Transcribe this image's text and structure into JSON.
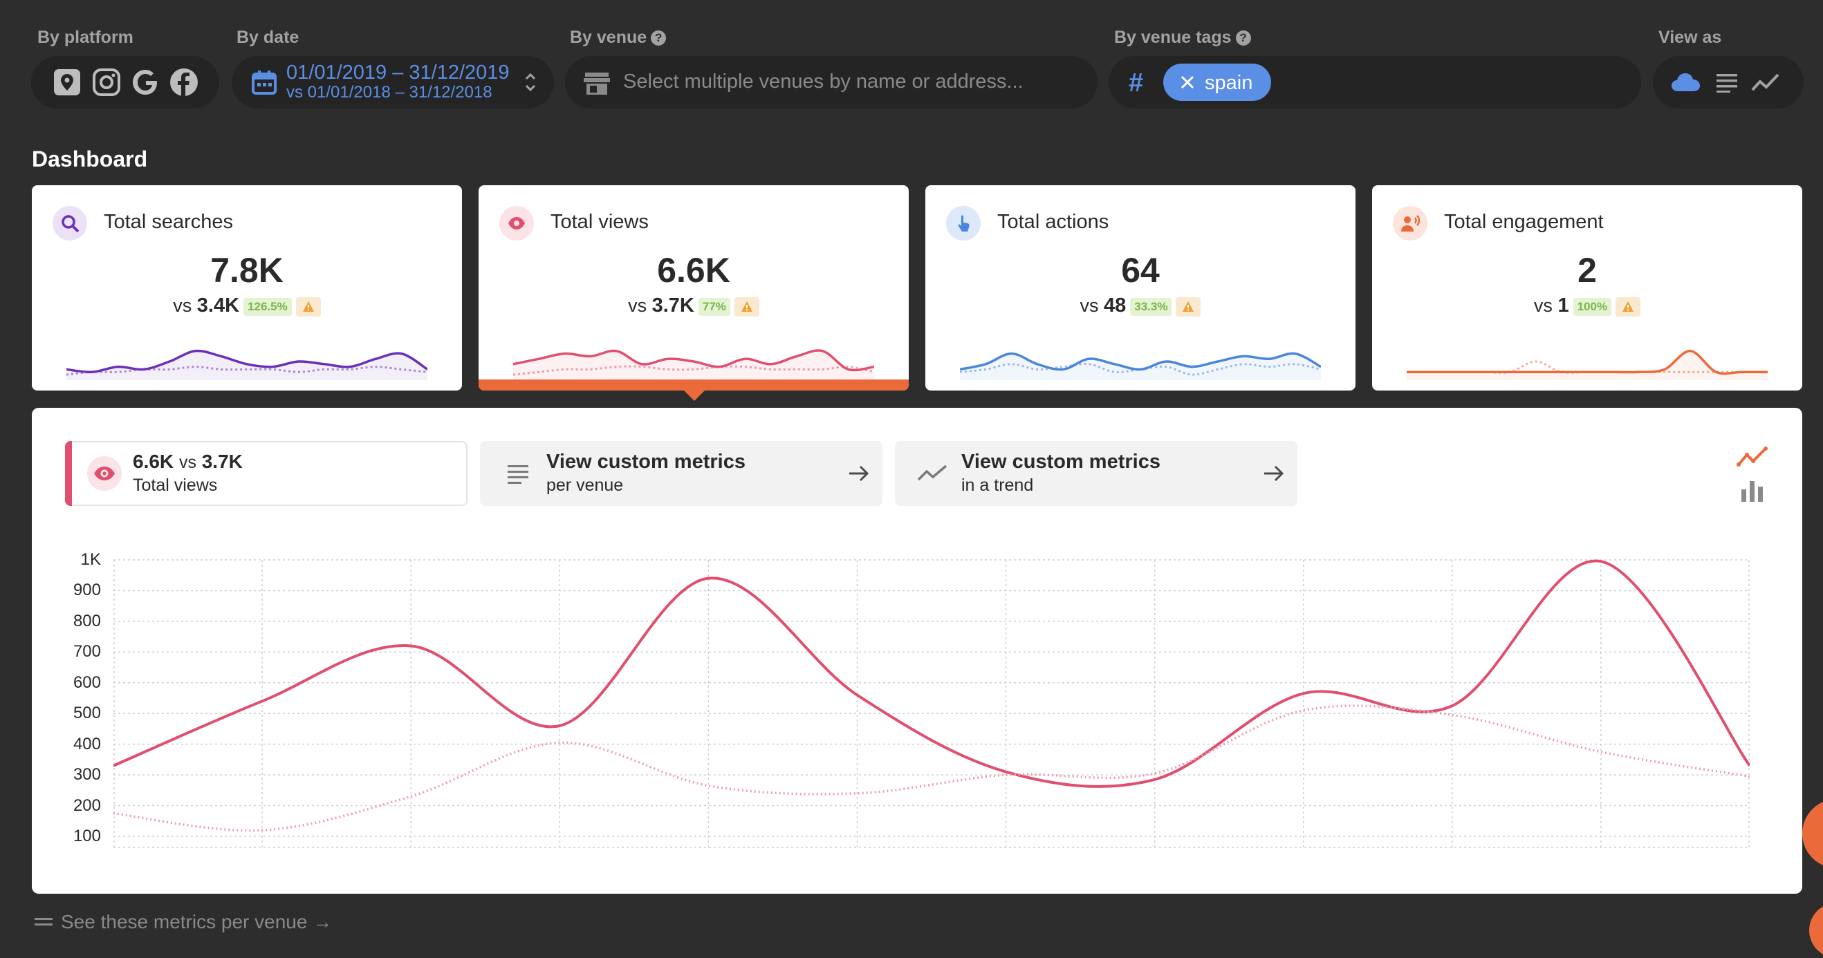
{
  "filters": {
    "platform": {
      "label": "By platform",
      "icons": [
        "google-maps-pin-icon",
        "instagram-icon",
        "google-icon",
        "facebook-icon"
      ]
    },
    "date": {
      "label": "By date",
      "range": "01/01/2019 – 31/12/2019",
      "compare": "vs 01/01/2018 – 31/12/2018"
    },
    "venue": {
      "label": "By venue",
      "placeholder": "Select multiple venues by name or address..."
    },
    "tags": {
      "label": "By venue tags",
      "chips": [
        "spain"
      ]
    },
    "view_as": {
      "label": "View as",
      "options": [
        "cloud-icon",
        "list-icon",
        "trend-icon"
      ]
    }
  },
  "dashboard": {
    "title": "Dashboard",
    "cards": [
      {
        "title": "Total searches",
        "value": "7.8K",
        "vs_label": "vs",
        "vs_value": "3.4K",
        "change": "126.5%",
        "color": "#6b2fb8",
        "icon_bg": "#ece2f7"
      },
      {
        "title": "Total views",
        "value": "6.6K",
        "vs_label": "vs",
        "vs_value": "3.7K",
        "change": "77%",
        "color": "#e0506e",
        "icon_bg": "#fbe3e7",
        "selected": true
      },
      {
        "title": "Total actions",
        "value": "64",
        "vs_label": "vs",
        "vs_value": "48",
        "change": "33.3%",
        "color": "#4a86db",
        "icon_bg": "#dde8f8"
      },
      {
        "title": "Total engagement",
        "value": "2",
        "vs_label": "vs",
        "vs_value": "1",
        "change": "100%",
        "color": "#ea6a3a",
        "icon_bg": "#fde4dc"
      }
    ]
  },
  "detail": {
    "metric": {
      "value": "6.6K",
      "vs_label": "vs",
      "vs_value": "3.7K",
      "label": "Total views"
    },
    "custom_venue": {
      "title": "View custom metrics",
      "sub": "per venue"
    },
    "custom_trend": {
      "title": "View custom metrics",
      "sub": "in a trend"
    }
  },
  "chart_data": {
    "type": "line",
    "ylim": [
      100,
      1000
    ],
    "y_ticks": [
      "1K",
      "900",
      "800",
      "700",
      "600",
      "500",
      "400",
      "300",
      "200",
      "100"
    ],
    "series": [
      {
        "values": [
          330,
          540,
          720,
          460,
          940,
          560,
          310,
          285,
          565,
          525,
          995,
          330
        ]
      },
      {
        "values": [
          175,
          120,
          230,
          405,
          265,
          240,
          300,
          305,
          510,
          495,
          375,
          295
        ]
      }
    ],
    "grid": true,
    "colors": {
      "current": "#e0506e",
      "previous": "#ee9db0"
    }
  },
  "footer": {
    "link": "See these metrics per venue →"
  }
}
